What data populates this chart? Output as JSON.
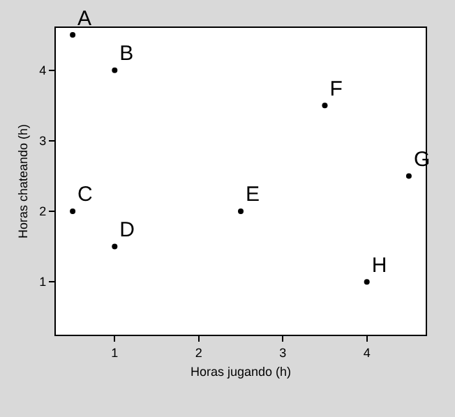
{
  "chart_data": {
    "type": "scatter",
    "xlabel": "Horas jugando (h)",
    "ylabel": "Horas chateando (h)",
    "x": [
      0.5,
      1,
      0.5,
      1,
      2.5,
      3.5,
      4.5,
      4
    ],
    "values": [
      4.5,
      4,
      2,
      1.5,
      2,
      3.5,
      2.5,
      1
    ],
    "value_labels": [
      "A",
      "B",
      "C",
      "D",
      "E",
      "F",
      "G",
      "H"
    ],
    "marker": "circle",
    "color": "#000000",
    "xlim": [
      0.3,
      4.7
    ],
    "ylim": [
      0.25,
      4.6
    ],
    "xticks": [
      1,
      2,
      3,
      4
    ],
    "yticks": [
      1,
      2,
      3,
      4
    ],
    "legend": false
  }
}
